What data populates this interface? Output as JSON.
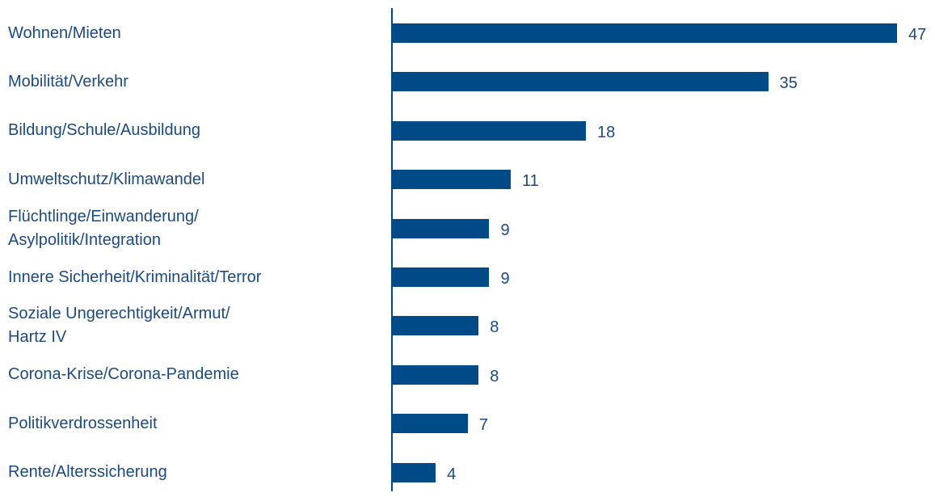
{
  "chart_data": {
    "type": "bar",
    "orientation": "horizontal",
    "categories": [
      "Wohnen/Mieten",
      "Mobilität/Verkehr",
      "Bildung/Schule/Ausbildung",
      "Umweltschutz/Klimawandel",
      "Flüchtlinge/Einwanderung/\nAsylpolitik/Integration",
      "Innere Sicherheit/Kriminalität/Terror",
      "Soziale Ungerechtigkeit/Armut/\nHartz IV",
      "Corona-Krise/Corona-Pandemie",
      "Politikverdrossenheit",
      "Rente/Alterssicherung"
    ],
    "values": [
      47,
      35,
      18,
      11,
      9,
      9,
      8,
      8,
      7,
      4
    ],
    "color": "#004a87"
  }
}
